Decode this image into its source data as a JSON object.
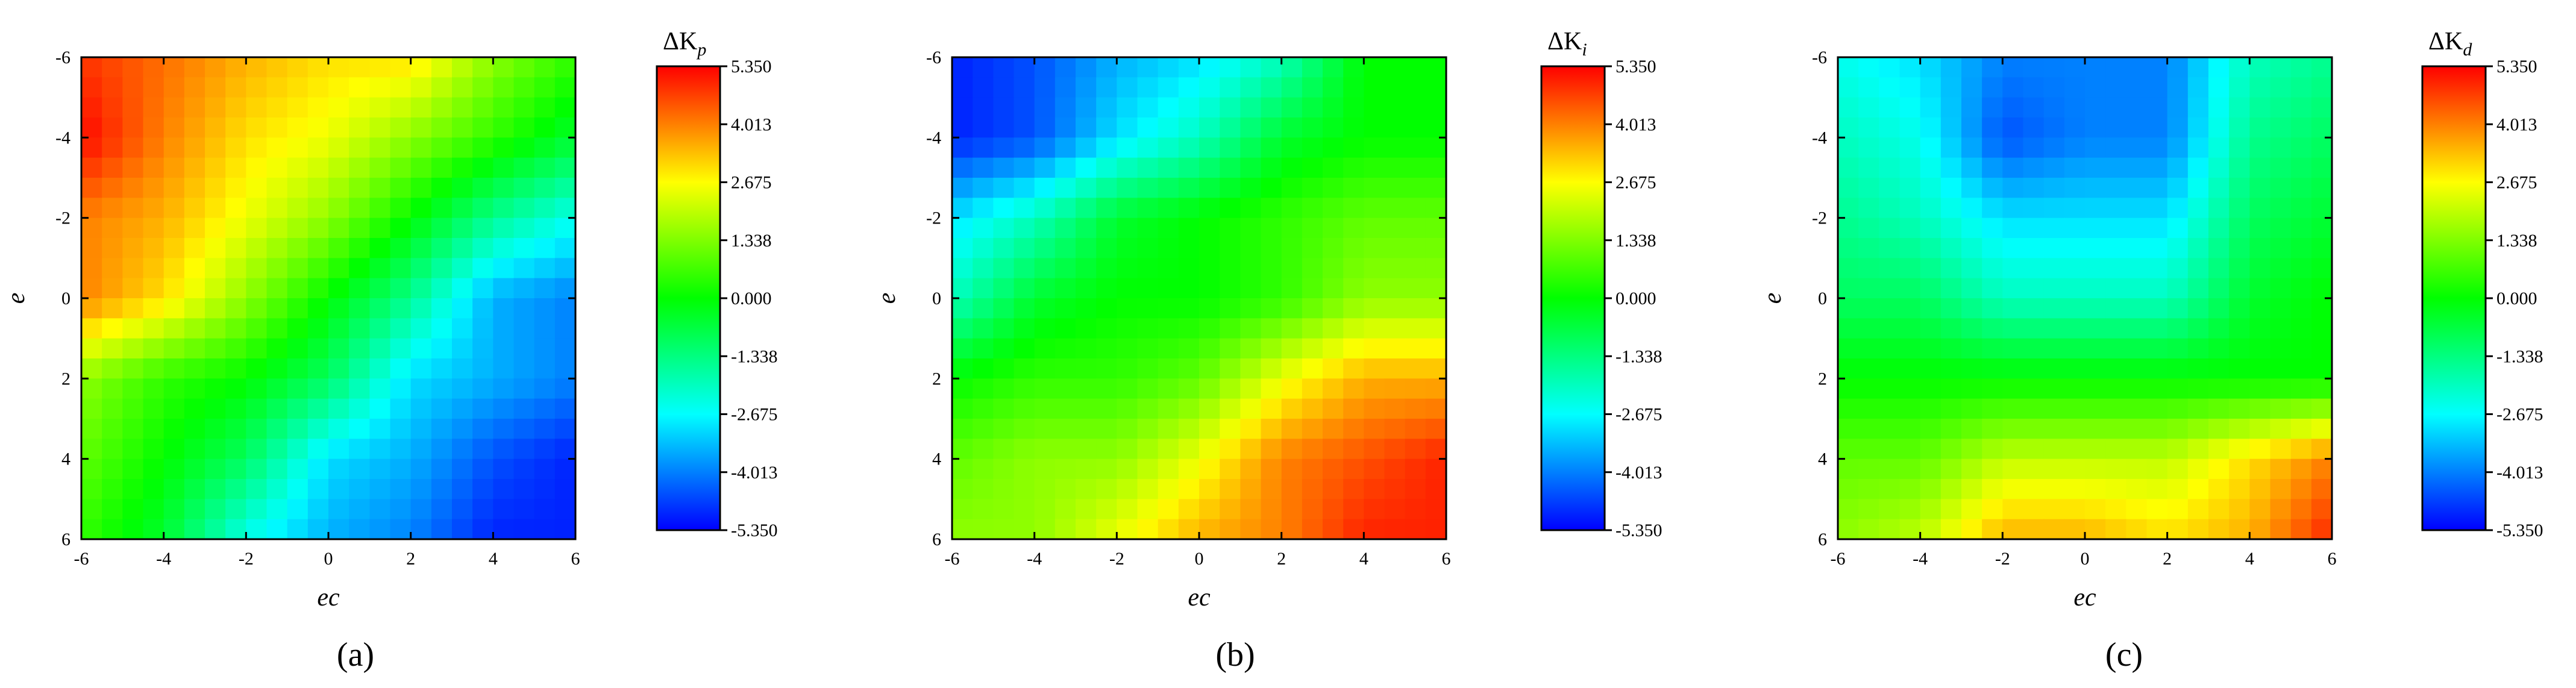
{
  "chart_data": [
    {
      "type": "heatmap",
      "panel_label": "(a)",
      "xlabel": "ec",
      "ylabel": "e",
      "colorbar_title": {
        "main": "ΔK",
        "sub": "p"
      },
      "x": [
        -6,
        -4,
        -2,
        0,
        2,
        4,
        6
      ],
      "y": [
        -6,
        -4,
        -2,
        0,
        2,
        4,
        6
      ],
      "z": [
        [
          4.8,
          4.2,
          3.5,
          3.0,
          3.0,
          1.5,
          0.5
        ],
        [
          5.3,
          4.0,
          3.0,
          2.5,
          1.5,
          0.5,
          -0.5
        ],
        [
          4.0,
          3.5,
          2.5,
          1.5,
          0.0,
          -1.5,
          -2.5
        ],
        [
          4.0,
          3.0,
          1.5,
          0.0,
          -1.5,
          -3.5,
          -4.0
        ],
        [
          1.5,
          0.5,
          0.0,
          -1.0,
          -3.0,
          -3.5,
          -4.0
        ],
        [
          1.0,
          0.0,
          -1.0,
          -3.0,
          -3.5,
          -4.5,
          -5.0
        ],
        [
          0.5,
          -0.5,
          -2.5,
          -3.5,
          -4.0,
          -5.0,
          -5.0
        ]
      ],
      "zlim": [
        -5.35,
        5.35
      ],
      "colorbar_ticks": [
        "5.350",
        "4.013",
        "2.675",
        "1.338",
        "0.000",
        "-1.338",
        "-2.675",
        "-4.013",
        "-5.350"
      ],
      "colormap": [
        "#0000ff",
        "#00ffff",
        "#00ff00",
        "#ffff00",
        "#ff0000"
      ]
    },
    {
      "type": "heatmap",
      "panel_label": "(b)",
      "xlabel": "ec",
      "ylabel": "e",
      "colorbar_title": {
        "main": "ΔK",
        "sub": "i"
      },
      "x": [
        -6,
        -4,
        -2,
        0,
        2,
        4,
        6
      ],
      "y": [
        -6,
        -4,
        -2,
        0,
        2,
        4,
        6
      ],
      "z": [
        [
          -5.0,
          -4.5,
          -3.5,
          -3.0,
          -2.0,
          0.0,
          0.0
        ],
        [
          -5.0,
          -4.5,
          -3.0,
          -2.0,
          -0.5,
          0.0,
          0.0
        ],
        [
          -3.0,
          -2.0,
          -0.5,
          0.0,
          0.5,
          1.0,
          1.0
        ],
        [
          -2.0,
          -0.5,
          0.0,
          0.0,
          0.5,
          1.5,
          1.5
        ],
        [
          0.0,
          0.5,
          0.5,
          1.0,
          2.5,
          3.5,
          3.5
        ],
        [
          1.0,
          1.5,
          1.5,
          2.5,
          4.0,
          4.5,
          5.0
        ],
        [
          1.5,
          1.5,
          2.5,
          3.5,
          4.0,
          5.0,
          5.0
        ]
      ],
      "zlim": [
        -5.35,
        5.35
      ],
      "colorbar_ticks": [
        "5.350",
        "4.013",
        "2.675",
        "1.338",
        "0.000",
        "-1.338",
        "-2.675",
        "-4.013",
        "-5.350"
      ],
      "colormap": [
        "#0000ff",
        "#00ffff",
        "#00ff00",
        "#ffff00",
        "#ff0000"
      ]
    },
    {
      "type": "heatmap",
      "panel_label": "(c)",
      "xlabel": "ec",
      "ylabel": "e",
      "colorbar_title": {
        "main": "ΔK",
        "sub": "d"
      },
      "x": [
        -6,
        -4,
        -2,
        0,
        2,
        4,
        6
      ],
      "y": [
        -6,
        -4,
        -2,
        0,
        2,
        4,
        6
      ],
      "z": [
        [
          -2.5,
          -3.0,
          -4.0,
          -4.0,
          -4.0,
          -2.0,
          -1.5
        ],
        [
          -2.0,
          -2.5,
          -4.5,
          -4.0,
          -4.0,
          -1.5,
          -1.0
        ],
        [
          -1.5,
          -2.0,
          -3.0,
          -3.0,
          -3.0,
          -1.0,
          -0.5
        ],
        [
          -1.0,
          -1.0,
          -2.0,
          -2.0,
          -2.0,
          -0.5,
          0.0
        ],
        [
          0.0,
          0.0,
          0.0,
          0.0,
          0.0,
          0.0,
          0.0
        ],
        [
          1.0,
          1.0,
          2.0,
          2.0,
          2.0,
          3.0,
          4.0
        ],
        [
          1.5,
          2.0,
          3.5,
          3.5,
          3.0,
          3.5,
          5.0
        ]
      ],
      "zlim": [
        -5.35,
        5.35
      ],
      "colorbar_ticks": [
        "5.350",
        "4.013",
        "2.675",
        "1.338",
        "0.000",
        "-1.338",
        "-2.675",
        "-4.013",
        "-5.350"
      ],
      "colormap": [
        "#0000ff",
        "#00ffff",
        "#00ff00",
        "#ffff00",
        "#ff0000"
      ]
    }
  ]
}
